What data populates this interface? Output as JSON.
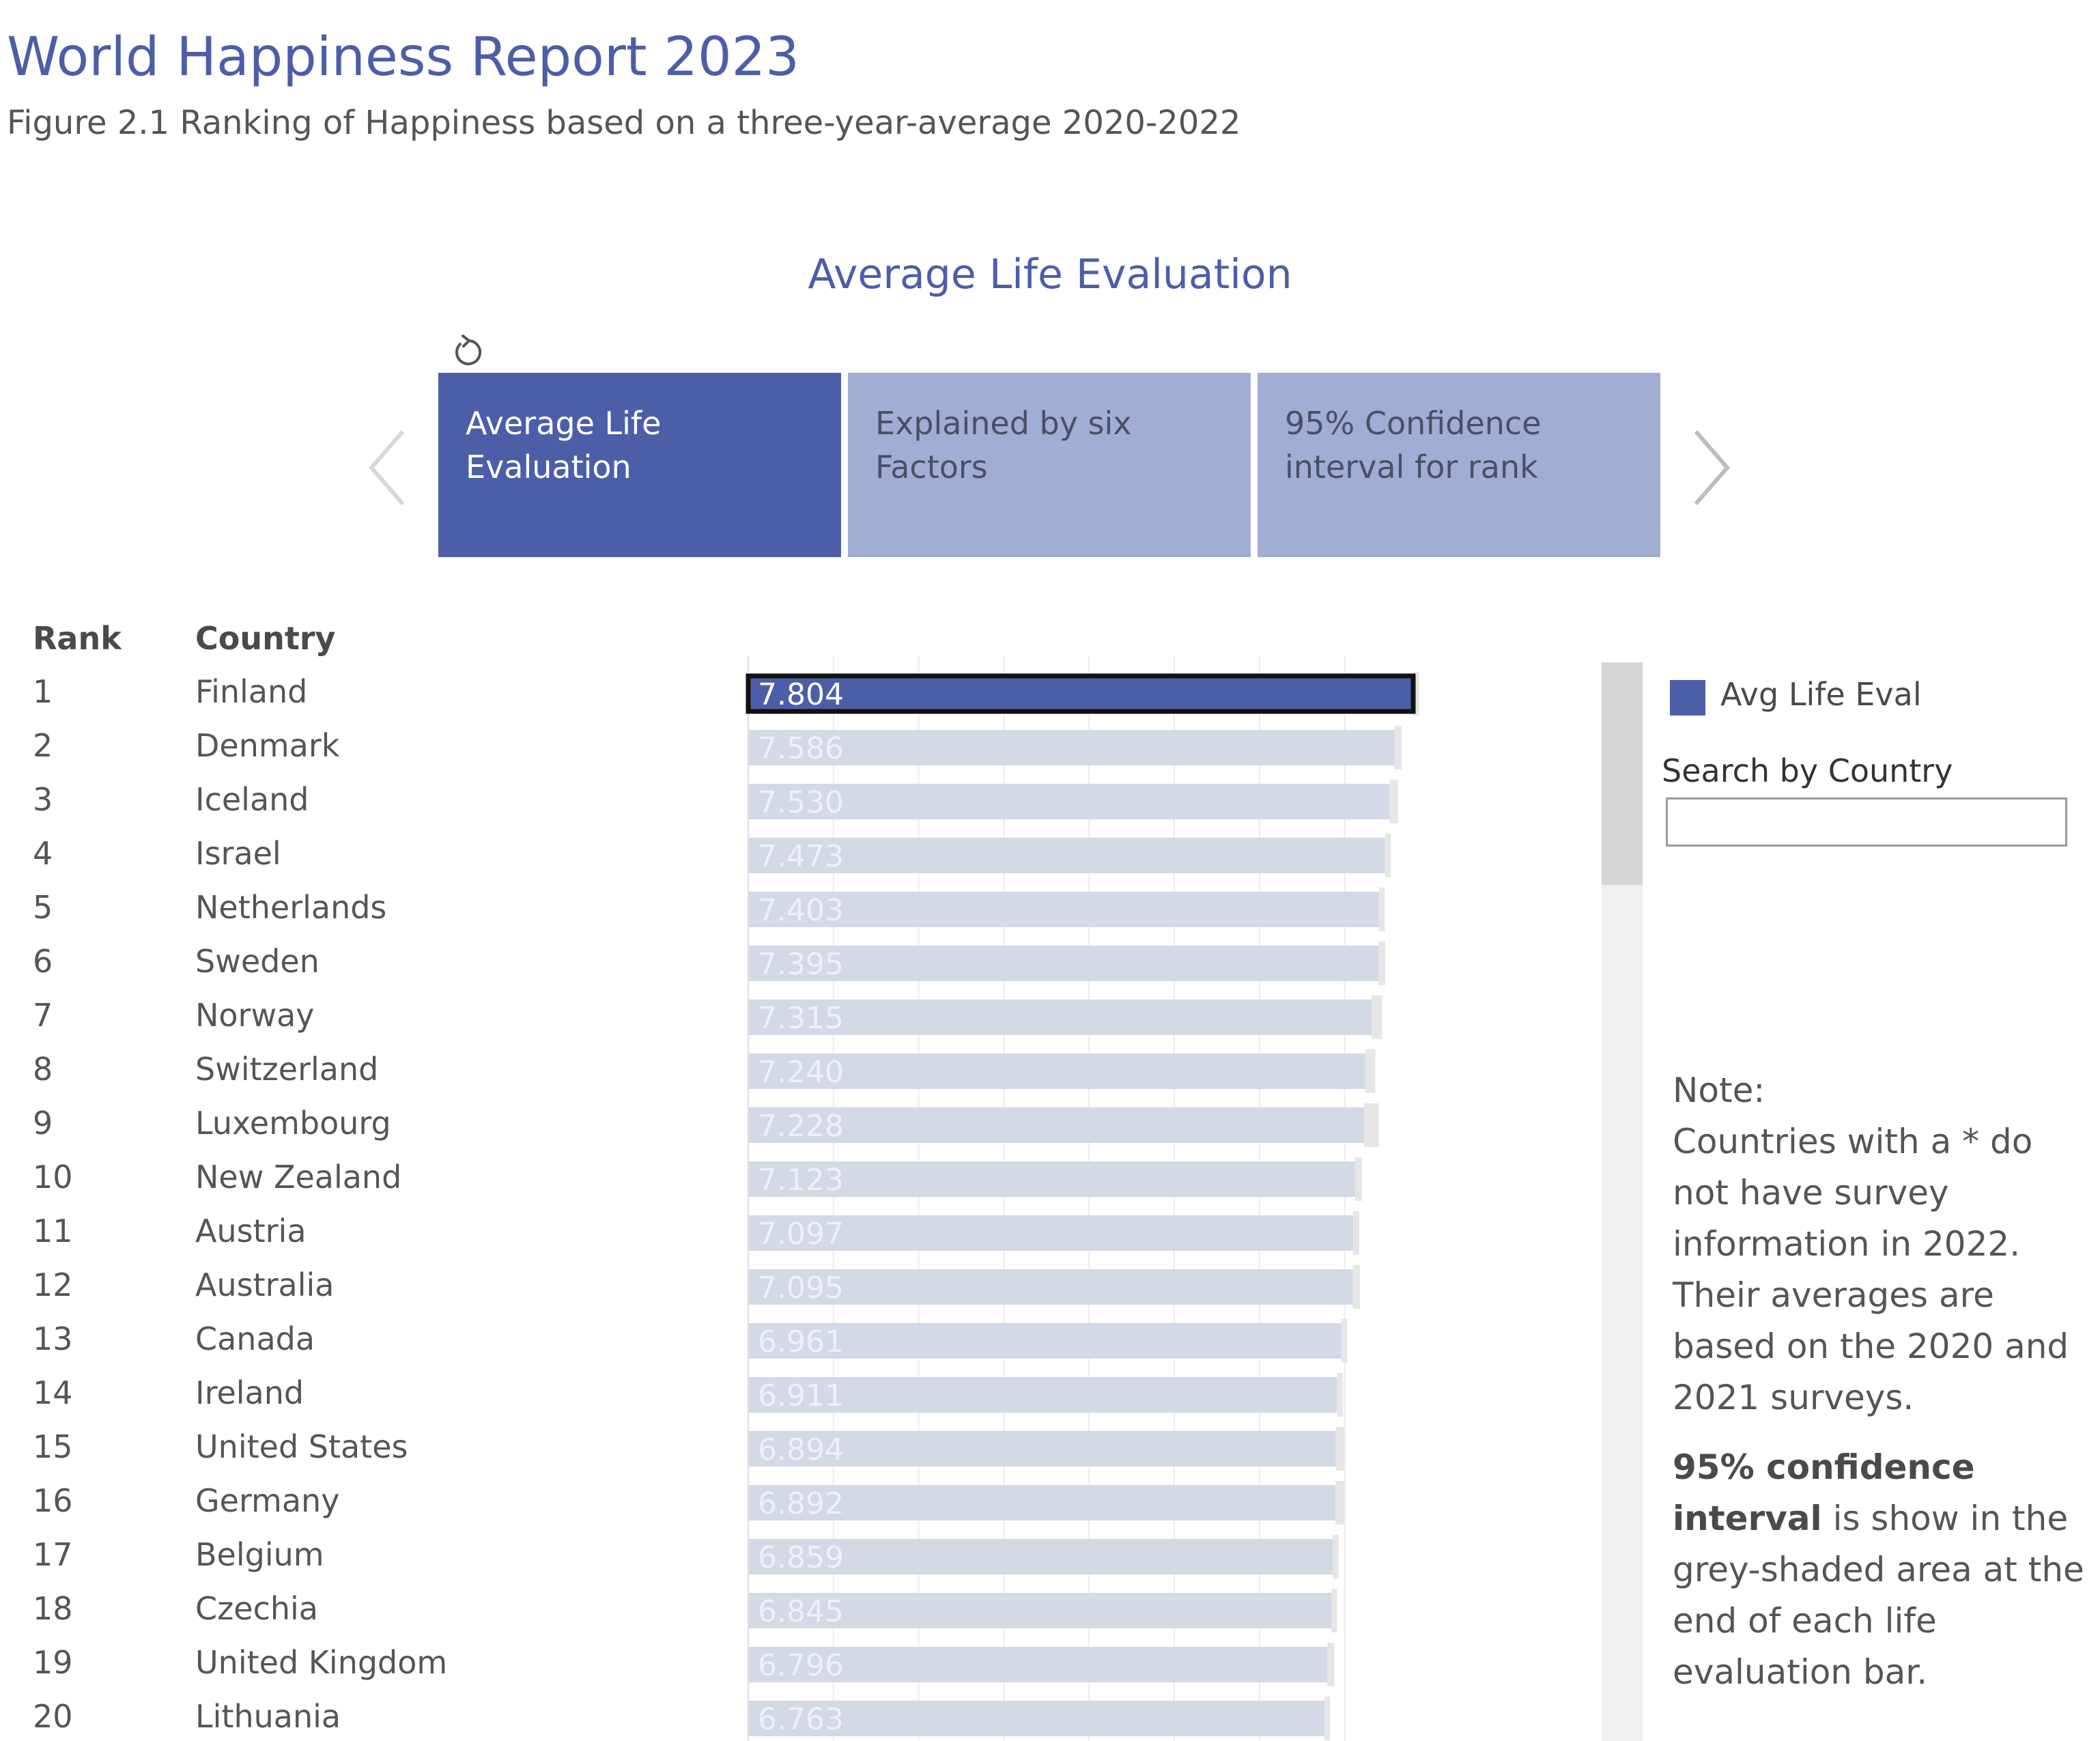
{
  "header": {
    "title": "World Happiness Report 2023",
    "subtitle": "Figure 2.1 Ranking of Happiness based on a three-year-average 2020-2022"
  },
  "section_heading": "Average Life Evaluation",
  "tabs": [
    {
      "label": "Average Life Evaluation",
      "active": true
    },
    {
      "label": "Explained by six Factors",
      "active": false
    },
    {
      "label": "95% Confidence interval for rank",
      "active": false
    }
  ],
  "icons": {
    "reset": "reset-icon",
    "prev": "chevron-left-icon",
    "next": "chevron-right-icon"
  },
  "columns": {
    "rank": "Rank",
    "country": "Country"
  },
  "colors": {
    "accent": "#4c5ea8",
    "inactive_tab": "#a2add4",
    "bar_faded": "#d4d9e6",
    "confidence_shade": "#e6e6e6",
    "label_faded": "#eef0f7"
  },
  "legend": {
    "label": "Avg Life Eval"
  },
  "search": {
    "label": "Search by Country",
    "value": "",
    "placeholder": ""
  },
  "note": {
    "heading": "Note:",
    "body": "Countries with a * do not have survey information in 2022. Their averages are based on the 2020 and 2021 surveys."
  },
  "ci_note": {
    "bold": "95% confidence interval",
    "body": "is show in the grey-shaded area at the end of each life evaluation bar."
  },
  "chart_data": {
    "type": "bar",
    "orientation": "horizontal",
    "categories": [
      "Finland",
      "Denmark",
      "Iceland",
      "Israel",
      "Netherlands",
      "Sweden",
      "Norway",
      "Switzerland",
      "Luxembourg",
      "New Zealand",
      "Austria",
      "Australia",
      "Canada",
      "Ireland",
      "United States",
      "Germany",
      "Belgium",
      "Czechia",
      "United Kingdom",
      "Lithuania"
    ],
    "ranks": [
      "1",
      "2",
      "3",
      "4",
      "5",
      "6",
      "7",
      "8",
      "9",
      "10",
      "11",
      "12",
      "13",
      "14",
      "15",
      "16",
      "17",
      "18",
      "19",
      "20"
    ],
    "series": [
      {
        "name": "Avg Life Eval",
        "value_labels": [
          "7.804",
          "7.586",
          "7.530",
          "7.473",
          "7.403",
          "7.395",
          "7.315",
          "7.240",
          "7.228",
          "7.123",
          "7.097",
          "7.095",
          "6.961",
          "6.911",
          "6.894",
          "6.892",
          "6.859",
          "6.845",
          "6.796",
          "6.763"
        ],
        "values": [
          7.804,
          7.586,
          7.53,
          7.473,
          7.403,
          7.395,
          7.315,
          7.24,
          7.228,
          7.123,
          7.097,
          7.095,
          6.961,
          6.911,
          6.894,
          6.892,
          6.859,
          6.845,
          6.796,
          6.763
        ]
      }
    ],
    "ci_upper": [
      7.875,
      7.667,
      7.625,
      7.542,
      7.47,
      7.475,
      7.44,
      7.36,
      7.4,
      7.2,
      7.17,
      7.18,
      7.03,
      6.98,
      6.99,
      6.99,
      6.93,
      6.91,
      6.88,
      6.83
    ],
    "highlighted_index": 0,
    "xlim": [
      0,
      7.9
    ],
    "grid": true,
    "legend_position": "right"
  }
}
